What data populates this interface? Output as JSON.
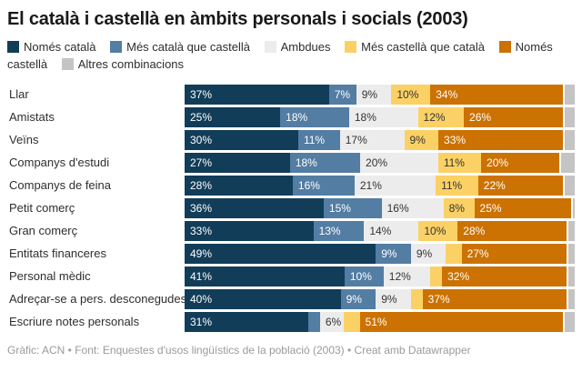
{
  "title": "El català i castellà en àmbits personals i socials (2003)",
  "footer": "Gràfic: ACN • Font: Enquestes d'usos lingüístics de la població (2003) • Creat amb Datawrapper",
  "chart_data": {
    "type": "bar",
    "stacked": true,
    "orientation": "horizontal",
    "unit": "%",
    "min_label_value": 6,
    "grid": false,
    "legend_position": "top",
    "categories": [
      "Llar",
      "Amistats",
      "Veïns",
      "Companys d'estudi",
      "Companys de feina",
      "Petit comerç",
      "Gran comerç",
      "Entitats financeres",
      "Personal mèdic",
      "Adreçar-se a pers. desconegudes",
      "Escriure notes personals"
    ],
    "series": [
      {
        "name": "Només català",
        "color": "#123D59",
        "text_color": "#FFFFFF",
        "values": [
          37,
          25,
          30,
          27,
          28,
          36,
          33,
          49,
          41,
          40,
          31
        ]
      },
      {
        "name": "Més català que castellà",
        "color": "#537DA3",
        "text_color": "#FFFFFF",
        "values": [
          7,
          18,
          11,
          18,
          16,
          15,
          13,
          9,
          10,
          9,
          3
        ]
      },
      {
        "name": "Ambdues",
        "color": "#ECECEC",
        "text_color": "#333333",
        "values": [
          9,
          18,
          17,
          20,
          21,
          16,
          14,
          9,
          12,
          9,
          6
        ]
      },
      {
        "name": "Més castellà que català",
        "color": "#FBD166",
        "text_color": "#333333",
        "values": [
          10,
          12,
          9,
          11,
          11,
          8,
          10,
          4,
          3,
          3,
          4
        ]
      },
      {
        "name": "Només castellà",
        "color": "#CC7202",
        "text_color": "#FFFFFF",
        "values": [
          34,
          26,
          33,
          20,
          22,
          25,
          28,
          27,
          32,
          37,
          51
        ]
      },
      {
        "name": "Altres combinacions",
        "color": "#C4C4C4",
        "text_color": "#333333",
        "values": [
          3,
          3,
          3,
          4,
          3,
          1,
          2,
          2,
          2,
          2,
          3
        ]
      }
    ]
  }
}
